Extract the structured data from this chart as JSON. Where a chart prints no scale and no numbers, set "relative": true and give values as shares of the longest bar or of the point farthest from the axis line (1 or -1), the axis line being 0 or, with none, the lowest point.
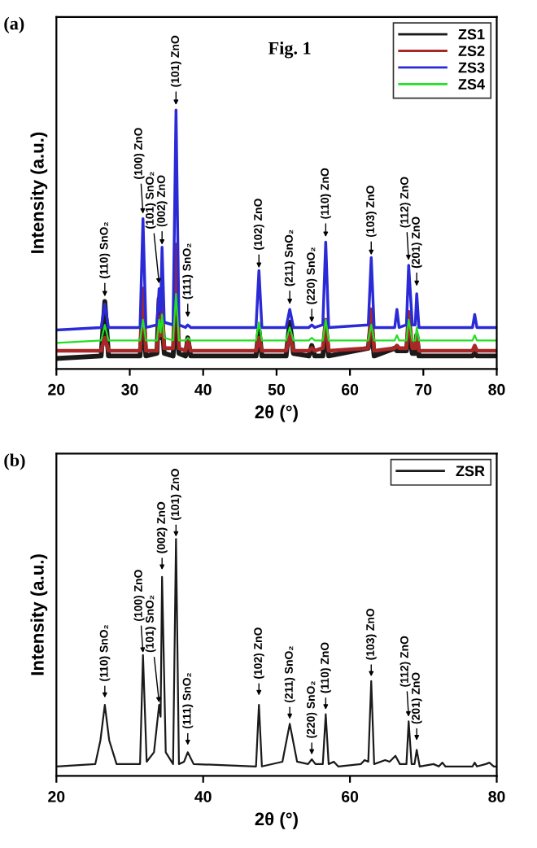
{
  "chart_data": [
    {
      "type": "line",
      "title": "(a)",
      "xlabel": "2θ (°)",
      "ylabel": "Intensity (a.u.)",
      "relative": true,
      "xlim": [
        20,
        80
      ],
      "xticks": [
        20,
        30,
        40,
        50,
        60,
        70,
        80
      ],
      "legend": "top right",
      "grid": false,
      "x": [
        20,
        26.1,
        26.6,
        27.1,
        31.4,
        31.8,
        32.2,
        33.7,
        34.0,
        34.2,
        34.4,
        34.7,
        35.9,
        36.3,
        36.7,
        37.6,
        37.9,
        38.3,
        47.2,
        47.6,
        48.0,
        51.3,
        51.8,
        52.3,
        54.4,
        54.8,
        55.2,
        56.3,
        56.7,
        57.1,
        62.5,
        62.9,
        63.3,
        66.1,
        66.4,
        66.7,
        67.7,
        68.0,
        68.5,
        68.9,
        69.1,
        69.4,
        76.7,
        77.0,
        77.3,
        80
      ],
      "series": [
        {
          "name": "ZS1",
          "color": "#1a1a1a",
          "values": [
            0.04,
            0.05,
            0.26,
            0.05,
            0.05,
            0.2,
            0.05,
            0.06,
            0.27,
            0.12,
            0.18,
            0.06,
            0.05,
            0.2,
            0.06,
            0.05,
            0.12,
            0.05,
            0.05,
            0.15,
            0.05,
            0.05,
            0.18,
            0.06,
            0.05,
            0.09,
            0.05,
            0.05,
            0.15,
            0.05,
            0.08,
            0.17,
            0.05,
            0.08,
            0.07,
            0.07,
            0.07,
            0.15,
            0.06,
            0.06,
            0.13,
            0.05,
            0.05,
            0.06,
            0.05,
            0.05
          ]
        },
        {
          "name": "ZS2",
          "color": "#a82828",
          "values": [
            0.07,
            0.07,
            0.12,
            0.07,
            0.07,
            0.31,
            0.07,
            0.07,
            0.2,
            0.13,
            0.25,
            0.08,
            0.08,
            0.48,
            0.08,
            0.07,
            0.11,
            0.07,
            0.07,
            0.12,
            0.07,
            0.07,
            0.13,
            0.07,
            0.07,
            0.08,
            0.07,
            0.08,
            0.19,
            0.07,
            0.08,
            0.23,
            0.07,
            0.08,
            0.09,
            0.08,
            0.08,
            0.22,
            0.08,
            0.08,
            0.13,
            0.07,
            0.07,
            0.09,
            0.07,
            0.07
          ]
        },
        {
          "name": "ZS3",
          "color": "#2a2ad6",
          "values": [
            0.15,
            0.16,
            0.25,
            0.16,
            0.16,
            0.58,
            0.16,
            0.17,
            0.31,
            0.22,
            0.47,
            0.18,
            0.17,
            1,
            0.17,
            0.16,
            0.17,
            0.16,
            0.16,
            0.38,
            0.16,
            0.16,
            0.23,
            0.16,
            0.16,
            0.17,
            0.16,
            0.17,
            0.49,
            0.16,
            0.17,
            0.43,
            0.16,
            0.16,
            0.23,
            0.16,
            0.17,
            0.4,
            0.17,
            0.17,
            0.29,
            0.16,
            0.16,
            0.21,
            0.16,
            0.16
          ]
        },
        {
          "name": "ZS4",
          "color": "#22e022",
          "values": [
            0.1,
            0.11,
            0.17,
            0.11,
            0.11,
            0.19,
            0.11,
            0.11,
            0.19,
            0.14,
            0.21,
            0.12,
            0.11,
            0.29,
            0.11,
            0.11,
            0.12,
            0.11,
            0.11,
            0.18,
            0.11,
            0.11,
            0.16,
            0.11,
            0.11,
            0.12,
            0.11,
            0.11,
            0.19,
            0.11,
            0.11,
            0.17,
            0.11,
            0.11,
            0.13,
            0.11,
            0.11,
            0.19,
            0.11,
            0.11,
            0.16,
            0.11,
            0.11,
            0.13,
            0.11,
            0.11
          ]
        }
      ],
      "annotations": [
        "Fig. 1",
        {
          "text": "(110) SnO₂",
          "x": 26.6,
          "y": 0.28
        },
        {
          "text": "(100) ZnO",
          "x": 31.8,
          "y": 0.6
        },
        {
          "text": "(101) SnO₂",
          "x": 34.0,
          "y": 0.33
        },
        {
          "text": "(002) ZnO",
          "x": 34.4,
          "y": 0.48
        },
        {
          "text": "(101) ZnO",
          "x": 36.3,
          "y": 1.02
        },
        {
          "text": "(111) SnO₂",
          "x": 37.9,
          "y": 0.2
        },
        {
          "text": "(102) ZnO",
          "x": 47.6,
          "y": 0.39
        },
        {
          "text": "(211) SnO₂",
          "x": 51.8,
          "y": 0.25
        },
        {
          "text": "(220) SnO₂",
          "x": 54.8,
          "y": 0.18
        },
        {
          "text": "(110) ZnO",
          "x": 56.7,
          "y": 0.51
        },
        {
          "text": "(103) ZnO",
          "x": 62.9,
          "y": 0.44
        },
        {
          "text": "(112) ZnO",
          "x": 68.0,
          "y": 0.42
        },
        {
          "text": "(201) ZnO",
          "x": 69.1,
          "y": 0.32
        }
      ]
    },
    {
      "type": "line",
      "title": "(b)",
      "xlabel": "2θ (°)",
      "ylabel": "Intensity (a.u.)",
      "relative": true,
      "xlim": [
        20,
        80
      ],
      "xticks": [
        20,
        40,
        60,
        80
      ],
      "legend": "top right",
      "grid": false,
      "x": [
        20,
        25.3,
        26.0,
        26.6,
        27.2,
        28.2,
        31.4,
        31.8,
        32.3,
        33.3,
        34.0,
        34.2,
        34.4,
        34.9,
        35.9,
        36.3,
        36.7,
        37.4,
        37.9,
        38.7,
        47.2,
        47.6,
        48.0,
        50.8,
        51.8,
        52.8,
        54.3,
        54.8,
        55.3,
        56.3,
        56.7,
        57.1,
        57.8,
        58.4,
        61.5,
        62.0,
        62.5,
        62.9,
        63.3,
        64.8,
        65.4,
        66.2,
        66.8,
        67.7,
        68.0,
        68.4,
        68.8,
        69.1,
        69.5,
        71.4,
        72.1,
        72.6,
        73.0,
        76.7,
        77.0,
        77.3,
        78.5,
        79.0,
        79.6,
        80
      ],
      "series": [
        {
          "name": "ZSR",
          "color": "#1a1a1a",
          "values": [
            0.04,
            0.05,
            0.15,
            0.3,
            0.15,
            0.05,
            0.05,
            0.51,
            0.06,
            0.1,
            0.3,
            0.25,
            0.84,
            0.1,
            0.05,
            1,
            0.05,
            0.06,
            0.1,
            0.05,
            0.04,
            0.3,
            0.04,
            0.06,
            0.22,
            0.06,
            0.05,
            0.07,
            0.05,
            0.05,
            0.26,
            0.05,
            0.06,
            0.04,
            0.05,
            0.067,
            0.06,
            0.4,
            0.05,
            0.067,
            0.06,
            0.085,
            0.05,
            0.05,
            0.23,
            0.05,
            0.05,
            0.11,
            0.04,
            0.05,
            0.04,
            0.056,
            0.04,
            0.04,
            0.056,
            0.04,
            0.05,
            0.056,
            0.04,
            0.04
          ]
        }
      ],
      "annotations": [
        {
          "text": "(110) SnO₂",
          "x": 26.6,
          "y": 0.33
        },
        {
          "text": "(100) ZnO",
          "x": 31.8,
          "y": 0.52
        },
        {
          "text": "(101) SnO₂",
          "x": 34.0,
          "y": 0.31
        },
        {
          "text": "(002) ZnO",
          "x": 34.4,
          "y": 0.87
        },
        {
          "text": "(101) ZnO",
          "x": 36.3,
          "y": 1.01
        },
        {
          "text": "(111) SnO₂",
          "x": 37.9,
          "y": 0.13
        },
        {
          "text": "(102) ZnO",
          "x": 47.6,
          "y": 0.34
        },
        {
          "text": "(211) SnO₂",
          "x": 51.8,
          "y": 0.24
        },
        {
          "text": "(220) SnO₂",
          "x": 54.8,
          "y": 0.09
        },
        {
          "text": "(110) ZnO",
          "x": 56.7,
          "y": 0.28
        },
        {
          "text": "(103) ZnO",
          "x": 62.9,
          "y": 0.42
        },
        {
          "text": "(112) ZnO",
          "x": 68.0,
          "y": 0.25
        },
        {
          "text": "(201) ZnO",
          "x": 69.1,
          "y": 0.15
        }
      ]
    }
  ]
}
